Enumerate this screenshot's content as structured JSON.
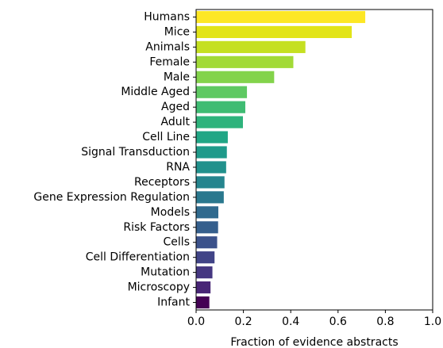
{
  "chart_data": {
    "type": "bar",
    "orientation": "horizontal",
    "categories": [
      "Humans",
      "Mice",
      "Animals",
      "Female",
      "Male",
      "Middle Aged",
      "Aged",
      "Adult",
      "Cell Line",
      "Signal Transduction",
      "RNA",
      "Receptors",
      "Gene Expression Regulation",
      "Models",
      "Risk Factors",
      "Cells",
      "Cell Differentiation",
      "Mutation",
      "Microscopy",
      "Infant"
    ],
    "values": [
      0.715,
      0.658,
      0.462,
      0.411,
      0.33,
      0.215,
      0.208,
      0.198,
      0.134,
      0.13,
      0.127,
      0.12,
      0.117,
      0.094,
      0.093,
      0.089,
      0.078,
      0.069,
      0.061,
      0.056
    ],
    "colors": [
      "#fde725",
      "#e2e418",
      "#c5e021",
      "#a2da37",
      "#83d34b",
      "#5ec962",
      "#3fbc73",
      "#2eb37c",
      "#21a685",
      "#1f9a8a",
      "#21918c",
      "#25858e",
      "#2a788e",
      "#306a8e",
      "#355f8d",
      "#3b528b",
      "#414487",
      "#453781",
      "#482576",
      "#440154"
    ],
    "xlabel": "Fraction of evidence abstracts",
    "ylabel": "",
    "title": "",
    "xlim": [
      0,
      1.0
    ],
    "xticks": [
      "0.0",
      "0.2",
      "0.4",
      "0.6",
      "0.8",
      "1.0"
    ],
    "grid": false,
    "legend": "none"
  }
}
